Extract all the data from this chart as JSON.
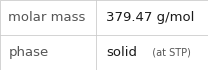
{
  "rows": [
    {
      "label": "molar mass",
      "value_parts": [
        {
          "text": "379.47 g/mol",
          "fontsize": 9.5,
          "color": "#1a1a1a",
          "weight": "normal",
          "family": "DejaVu Sans"
        }
      ]
    },
    {
      "label": "phase",
      "value_parts": [
        {
          "text": "solid",
          "fontsize": 9.5,
          "color": "#1a1a1a",
          "weight": "normal",
          "family": "DejaVu Sans"
        },
        {
          "text": "  (at STP)",
          "fontsize": 7.0,
          "color": "#555555",
          "weight": "normal",
          "family": "DejaVu Sans"
        }
      ]
    }
  ],
  "background_color": "#ffffff",
  "border_color": "#cccccc",
  "label_color": "#555555",
  "label_fontsize": 9.5,
  "col_split": 0.46,
  "lw": 0.6,
  "fig_width": 2.08,
  "fig_height": 0.7,
  "dpi": 100
}
